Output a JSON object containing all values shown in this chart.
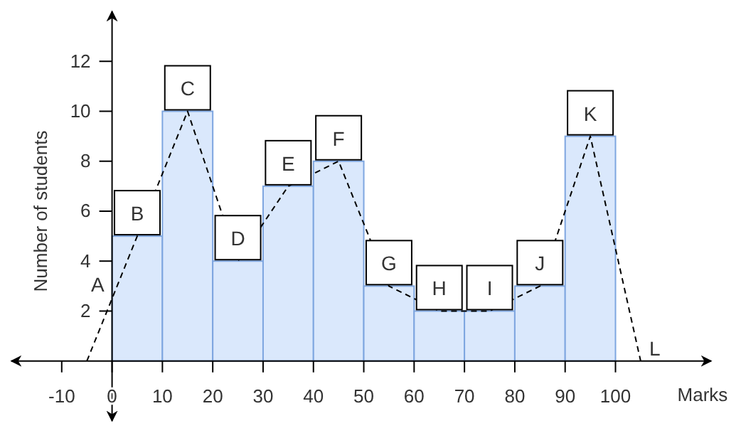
{
  "chart_data": {
    "type": "histogram",
    "xlabel": "Marks",
    "ylabel": "Number of students",
    "bins": [
      0,
      10,
      20,
      30,
      40,
      50,
      60,
      70,
      80,
      90,
      100
    ],
    "values": [
      5,
      10,
      4,
      7,
      8,
      3,
      2,
      2,
      3,
      9
    ],
    "color": "#dae8fc",
    "series": [
      {
        "type": "line",
        "color": "#000000",
        "line_style": "dashed",
        "x": [
          -5,
          5,
          15,
          25,
          35,
          45,
          55,
          65,
          75,
          85,
          95,
          105
        ],
        "values": [
          0,
          5,
          10,
          4,
          7,
          8,
          3,
          2,
          2,
          3,
          9,
          0
        ]
      }
    ],
    "xlim": [
      -20,
      119
    ],
    "ylim": [
      -2.4,
      14
    ],
    "xticks": [
      -10,
      {
        "value": 0,
        "label": "0"
      },
      10,
      20,
      30,
      40,
      50,
      60,
      70,
      80,
      90,
      100
    ],
    "yticks": [
      2,
      4,
      6,
      8,
      10,
      12
    ],
    "annotations": [
      {
        "text": "A",
        "x": 1,
        "y": 3
      },
      {
        "text": "B",
        "x": 5,
        "y": 5
      },
      {
        "text": "C",
        "x": 15,
        "y": 10
      },
      {
        "text": "D",
        "x": 25,
        "y": 4
      },
      {
        "text": "E",
        "x": 35,
        "y": 7
      },
      {
        "text": "F",
        "x": 45,
        "y": 8
      },
      {
        "text": "G",
        "x": 55,
        "y": 3
      },
      {
        "text": "H",
        "x": 65,
        "y": 2
      },
      {
        "text": "I",
        "x": 75,
        "y": 2
      },
      {
        "text": "J",
        "x": 85,
        "y": 3
      },
      {
        "text": "K",
        "x": 95,
        "y": 9
      },
      {
        "text": "L",
        "x": 105,
        "y": 0
      }
    ],
    "grid": false
  }
}
